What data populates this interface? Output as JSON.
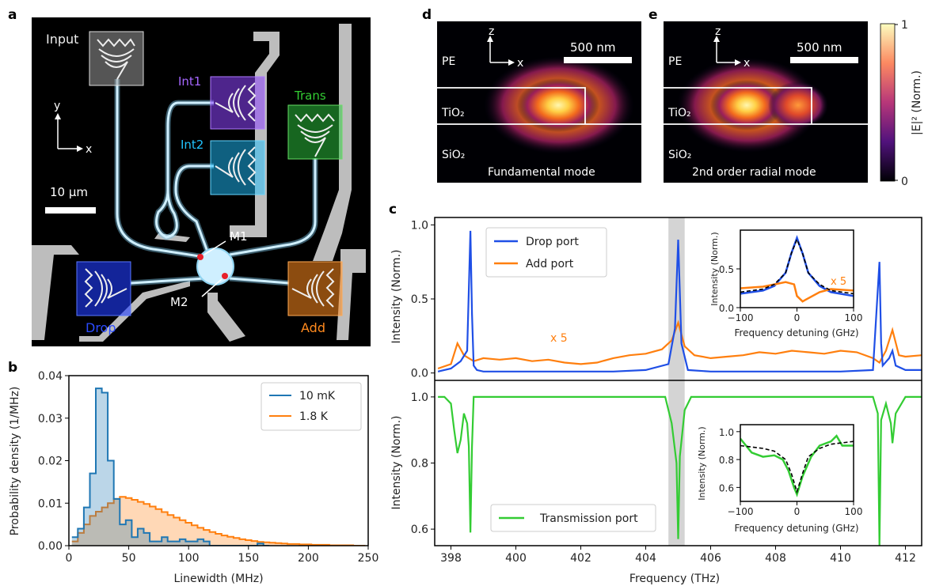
{
  "panels": {
    "a": "a",
    "b": "b",
    "c": "c",
    "d": "d",
    "e": "e"
  },
  "panel_a": {
    "ports": {
      "input": "Input",
      "int1": "Int1",
      "int2": "Int2",
      "trans": "Trans",
      "drop": "Drop",
      "add": "Add"
    },
    "axes": {
      "y": "y",
      "x": "x"
    },
    "scale": "10 μm",
    "markers": {
      "m1": "M1",
      "m2": "M2"
    },
    "colors": {
      "int1": "#9b59ff",
      "int2": "#1ec8ff",
      "trans": "#33cc33",
      "drop": "#2b4bff",
      "add": "#ff8a1e"
    }
  },
  "panel_de": {
    "axes": {
      "z": "z",
      "x": "x"
    },
    "scale": "500 nm",
    "layers": {
      "pe": "PE",
      "tio2": "TiO₂",
      "sio2": "SiO₂"
    },
    "mode_d": "Fundamental mode",
    "mode_e": "2nd order radial mode",
    "colorbar": {
      "top": "1",
      "bottom": "0",
      "label": "|E|² (Norm.)"
    }
  },
  "chart_data": [
    {
      "id": "b",
      "type": "area",
      "xlabel": "Linewidth (MHz)",
      "ylabel": "Probability density (1/MHz)",
      "xlim": [
        0,
        250
      ],
      "ylim": [
        0,
        0.04
      ],
      "xticks": [
        "0",
        "50",
        "100",
        "150",
        "200",
        "250"
      ],
      "yticks": [
        "0.00",
        "0.01",
        "0.02",
        "0.03",
        "0.04"
      ],
      "legend_position": "top-right",
      "series": [
        {
          "name": "10 mK",
          "color": "#1f77b4",
          "x": [
            5,
            10,
            15,
            20,
            25,
            30,
            35,
            40,
            45,
            50,
            55,
            60,
            65,
            70,
            75,
            80,
            85,
            90,
            95,
            100,
            105,
            110,
            115,
            120,
            125,
            130,
            135,
            140,
            145,
            150,
            155,
            160,
            165
          ],
          "values": [
            0.002,
            0.004,
            0.009,
            0.017,
            0.037,
            0.036,
            0.02,
            0.011,
            0.005,
            0.006,
            0.002,
            0.004,
            0.003,
            0.001,
            0.001,
            0.002,
            0.001,
            0.001,
            0.0015,
            0.001,
            0.001,
            0.0015,
            0.001,
            0.0,
            0.0,
            0.0,
            0.0,
            0.0,
            0.0,
            0.0,
            0.0,
            0.0005,
            0.0
          ]
        },
        {
          "name": "1.8 K",
          "color": "#ff7f0e",
          "x": [
            5,
            10,
            15,
            20,
            25,
            30,
            35,
            40,
            45,
            50,
            55,
            60,
            65,
            70,
            75,
            80,
            85,
            90,
            95,
            100,
            105,
            110,
            115,
            120,
            125,
            130,
            135,
            140,
            145,
            150,
            155,
            160,
            165,
            170,
            175,
            180,
            185,
            190,
            195,
            200,
            205,
            210,
            215,
            220,
            225,
            230,
            235,
            240,
            245
          ],
          "values": [
            0.001,
            0.003,
            0.005,
            0.007,
            0.008,
            0.009,
            0.01,
            0.011,
            0.0115,
            0.0112,
            0.0108,
            0.0103,
            0.0098,
            0.0092,
            0.0086,
            0.0079,
            0.0072,
            0.0066,
            0.006,
            0.0054,
            0.0048,
            0.0042,
            0.0037,
            0.0032,
            0.0028,
            0.0024,
            0.0021,
            0.0018,
            0.0015,
            0.0013,
            0.0011,
            0.0009,
            0.0008,
            0.0007,
            0.0006,
            0.0005,
            0.0004,
            0.0004,
            0.0003,
            0.0003,
            0.0002,
            0.0002,
            0.0002,
            0.0001,
            0.0001,
            0.0001,
            0.0001,
            0.0,
            0.0
          ]
        }
      ]
    },
    {
      "id": "c-top",
      "type": "line",
      "ylabel": "Intensity (Norm.)",
      "xlim": [
        397.5,
        412.5
      ],
      "ylim": [
        -0.05,
        1.05
      ],
      "yticks": [
        "0.0",
        "0.5",
        "1.0"
      ],
      "annotation": "x 5",
      "highlight": [
        404.7,
        405.2
      ],
      "legend_position": "top-left",
      "series": [
        {
          "name": "Drop port",
          "color": "#1f4fe6",
          "x": [
            397.6,
            398.0,
            398.3,
            398.5,
            398.6,
            398.65,
            398.7,
            398.8,
            399,
            400,
            401,
            402,
            403,
            404,
            404.7,
            404.9,
            405.0,
            405.1,
            405.3,
            406,
            407,
            408,
            409,
            410,
            411,
            411.2,
            411.25,
            411.3,
            411.5,
            411.6,
            411.7,
            412,
            412.5
          ],
          "values": [
            0.01,
            0.03,
            0.08,
            0.15,
            0.96,
            0.4,
            0.05,
            0.02,
            0.01,
            0.01,
            0.01,
            0.01,
            0.01,
            0.02,
            0.06,
            0.3,
            0.9,
            0.2,
            0.02,
            0.01,
            0.01,
            0.01,
            0.01,
            0.01,
            0.02,
            0.75,
            0.2,
            0.05,
            0.1,
            0.15,
            0.05,
            0.02,
            0.02
          ]
        },
        {
          "name": "Add port",
          "color": "#ff7f0e",
          "x": [
            397.6,
            398.0,
            398.2,
            398.4,
            398.7,
            399,
            399.5,
            400,
            400.5,
            401,
            401.5,
            402,
            402.5,
            403,
            403.5,
            404,
            404.5,
            404.8,
            405.0,
            405.2,
            405.5,
            406,
            406.5,
            407,
            407.5,
            408,
            408.5,
            409,
            409.5,
            410,
            410.5,
            411,
            411.2,
            411.4,
            411.6,
            411.8,
            412,
            412.5
          ],
          "values": [
            0.03,
            0.06,
            0.2,
            0.12,
            0.08,
            0.1,
            0.09,
            0.1,
            0.08,
            0.09,
            0.07,
            0.06,
            0.07,
            0.1,
            0.12,
            0.13,
            0.16,
            0.22,
            0.34,
            0.18,
            0.12,
            0.1,
            0.11,
            0.12,
            0.14,
            0.13,
            0.15,
            0.14,
            0.13,
            0.15,
            0.14,
            0.1,
            0.07,
            0.15,
            0.29,
            0.12,
            0.11,
            0.12
          ]
        }
      ],
      "inset": {
        "xlabel": "Frequency detuning (GHz)",
        "ylabel": "Intensity (Norm.)",
        "xlim": [
          -100,
          100
        ],
        "ylim": [
          0,
          1
        ],
        "xticks": [
          "−100",
          "0",
          "100"
        ],
        "yticks": [
          "0.0",
          "0.5"
        ],
        "annotation": "x 5",
        "series": [
          {
            "name": "drop",
            "color": "#1f4fe6",
            "x": [
              -100,
              -60,
              -40,
              -20,
              -10,
              0,
              10,
              20,
              40,
              60,
              100
            ],
            "values": [
              0.18,
              0.22,
              0.28,
              0.45,
              0.7,
              0.9,
              0.7,
              0.45,
              0.28,
              0.2,
              0.15
            ]
          },
          {
            "name": "add",
            "color": "#ff7f0e",
            "x": [
              -100,
              -60,
              -40,
              -20,
              -5,
              0,
              10,
              20,
              40,
              60,
              100
            ],
            "values": [
              0.25,
              0.27,
              0.3,
              0.33,
              0.3,
              0.15,
              0.08,
              0.12,
              0.2,
              0.24,
              0.22
            ]
          },
          {
            "name": "fit",
            "color": "#000000",
            "dashed": true,
            "x": [
              -100,
              -60,
              -40,
              -20,
              -10,
              0,
              10,
              20,
              40,
              60,
              100
            ],
            "values": [
              0.2,
              0.24,
              0.3,
              0.45,
              0.7,
              0.88,
              0.7,
              0.45,
              0.3,
              0.22,
              0.18
            ]
          }
        ]
      }
    },
    {
      "id": "c-bottom",
      "type": "line",
      "xlabel": "Frequency (THz)",
      "ylabel": "Intensity (Norm.)",
      "xlim": [
        397.5,
        412.5
      ],
      "ylim": [
        0.55,
        1.05
      ],
      "xticks": [
        "398",
        "400",
        "402",
        "404",
        "406",
        "408",
        "410",
        "412"
      ],
      "yticks": [
        "0.6",
        "0.8",
        "1.0"
      ],
      "legend_position": "bottom-left",
      "series": [
        {
          "name": "Transmission port",
          "color": "#33cc33",
          "x": [
            397.6,
            397.8,
            398.0,
            398.1,
            398.2,
            398.3,
            398.4,
            398.5,
            398.55,
            398.6,
            398.65,
            398.7,
            399,
            400,
            401,
            402,
            403,
            404,
            404.6,
            404.8,
            404.95,
            405.0,
            405.05,
            405.2,
            405.4,
            406,
            407,
            408,
            409,
            410,
            411,
            411.15,
            411.2,
            411.25,
            411.4,
            411.55,
            411.6,
            411.7,
            412,
            412.5
          ],
          "values": [
            1.0,
            1.0,
            0.98,
            0.9,
            0.83,
            0.87,
            0.95,
            0.92,
            0.85,
            0.59,
            0.85,
            1.0,
            1.0,
            1.0,
            1.0,
            1.0,
            1.0,
            1.0,
            1.0,
            0.92,
            0.8,
            0.57,
            0.82,
            0.96,
            1.0,
            1.0,
            1.0,
            1.0,
            1.0,
            1.0,
            1.0,
            0.95,
            0.55,
            0.93,
            0.98,
            0.92,
            0.86,
            0.95,
            1.0,
            1.0
          ]
        }
      ],
      "inset": {
        "xlabel": "Frequency detuning (GHz)",
        "ylabel": "Intensity (Norm.)",
        "xlim": [
          -100,
          100
        ],
        "ylim": [
          0.5,
          1.05
        ],
        "xticks": [
          "−100",
          "0",
          "100"
        ],
        "yticks": [
          "0.6",
          "0.8",
          "1.0"
        ],
        "series": [
          {
            "name": "trans",
            "color": "#33cc33",
            "x": [
              -100,
              -80,
              -60,
              -40,
              -25,
              -15,
              -5,
              0,
              10,
              25,
              40,
              60,
              70,
              80,
              100
            ],
            "values": [
              0.95,
              0.85,
              0.82,
              0.83,
              0.8,
              0.72,
              0.6,
              0.55,
              0.68,
              0.82,
              0.9,
              0.93,
              0.97,
              0.9,
              0.9
            ]
          },
          {
            "name": "fit",
            "color": "#000000",
            "dashed": true,
            "x": [
              -100,
              -60,
              -40,
              -20,
              -10,
              0,
              10,
              20,
              40,
              60,
              100
            ],
            "values": [
              0.9,
              0.88,
              0.86,
              0.8,
              0.7,
              0.57,
              0.7,
              0.82,
              0.88,
              0.91,
              0.93
            ]
          }
        ]
      }
    }
  ]
}
